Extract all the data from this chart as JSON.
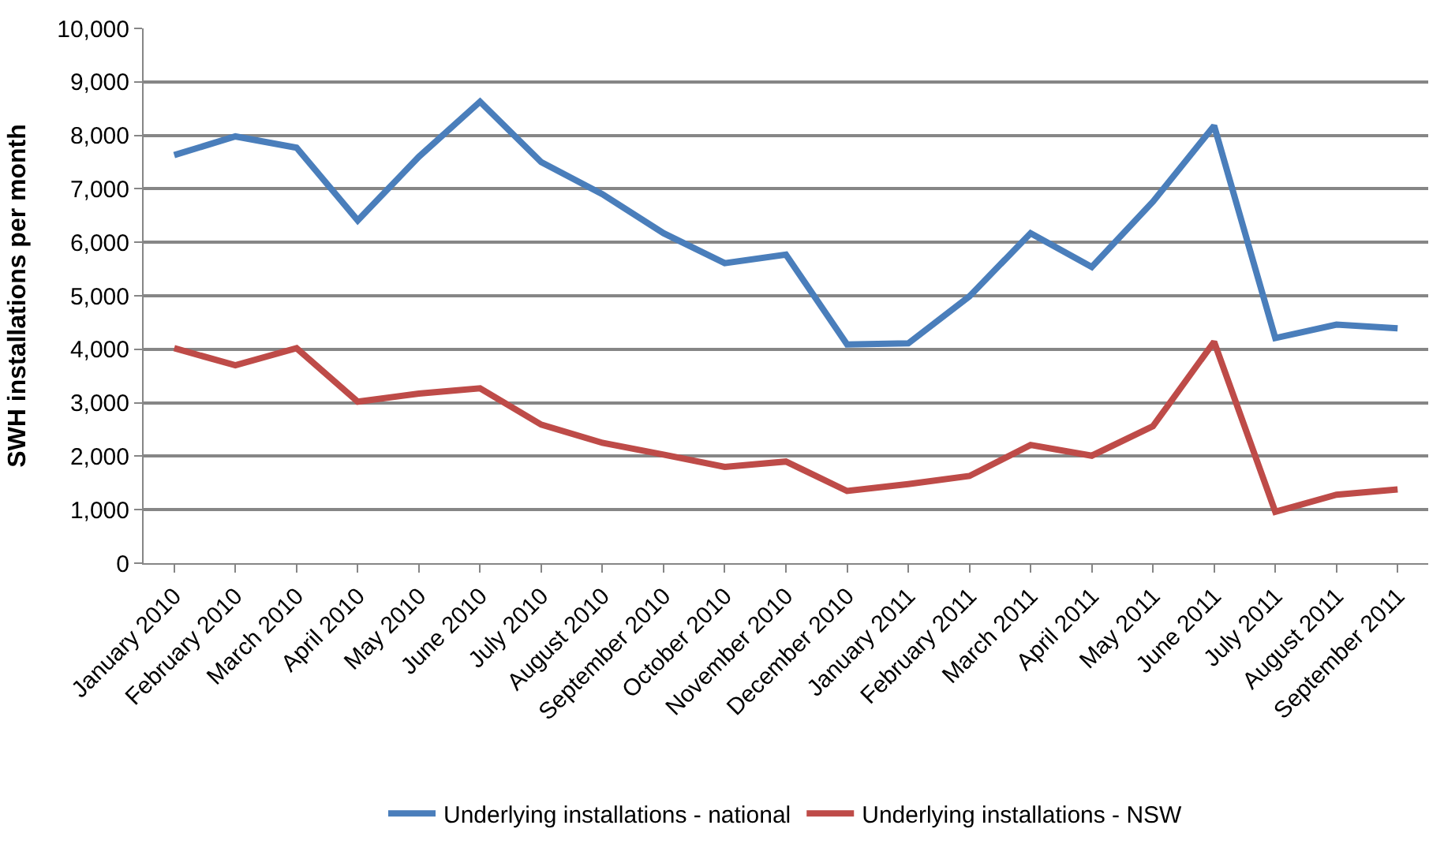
{
  "chart_data": {
    "type": "line",
    "ylabel": "SWH installations per month",
    "categories": [
      "January 2010",
      "February 2010",
      "March 2010",
      "April 2010",
      "May 2010",
      "June 2010",
      "July 2010",
      "August 2010",
      "September 2010",
      "October 2010",
      "November 2010",
      "December 2010",
      "January 2011",
      "February 2011",
      "March 2011",
      "April 2011",
      "May 2011",
      "June 2011",
      "July 2011",
      "August 2011",
      "September 2011"
    ],
    "series": [
      {
        "name": "Underlying installations - national",
        "color": "#4a7ebb",
        "values": [
          7630,
          7980,
          7770,
          6410,
          7600,
          8630,
          7500,
          6900,
          6170,
          5610,
          5770,
          4090,
          4110,
          4990,
          6170,
          5540,
          6760,
          8180,
          4210,
          4460,
          4390
        ]
      },
      {
        "name": "Underlying installations - NSW",
        "color": "#be4b48",
        "values": [
          4020,
          3700,
          4020,
          3020,
          3170,
          3270,
          2590,
          2250,
          2030,
          1800,
          1900,
          1350,
          1480,
          1630,
          2210,
          2010,
          2560,
          4140,
          960,
          1280,
          1380
        ]
      }
    ],
    "ylim": [
      0,
      10000
    ],
    "yticks": [
      {
        "value": 0,
        "label": "0"
      },
      {
        "value": 1000,
        "label": "1,000"
      },
      {
        "value": 2000,
        "label": "2,000"
      },
      {
        "value": 3000,
        "label": "3,000"
      },
      {
        "value": 4000,
        "label": "4,000"
      },
      {
        "value": 5000,
        "label": "5,000"
      },
      {
        "value": 6000,
        "label": "6,000"
      },
      {
        "value": 7000,
        "label": "7,000"
      },
      {
        "value": 8000,
        "label": "8,000"
      },
      {
        "value": 9000,
        "label": "9,000"
      },
      {
        "value": 10000,
        "label": "10,000"
      }
    ],
    "grid": "y",
    "legend": "bottom",
    "marker": "none",
    "line_style": "solid"
  }
}
